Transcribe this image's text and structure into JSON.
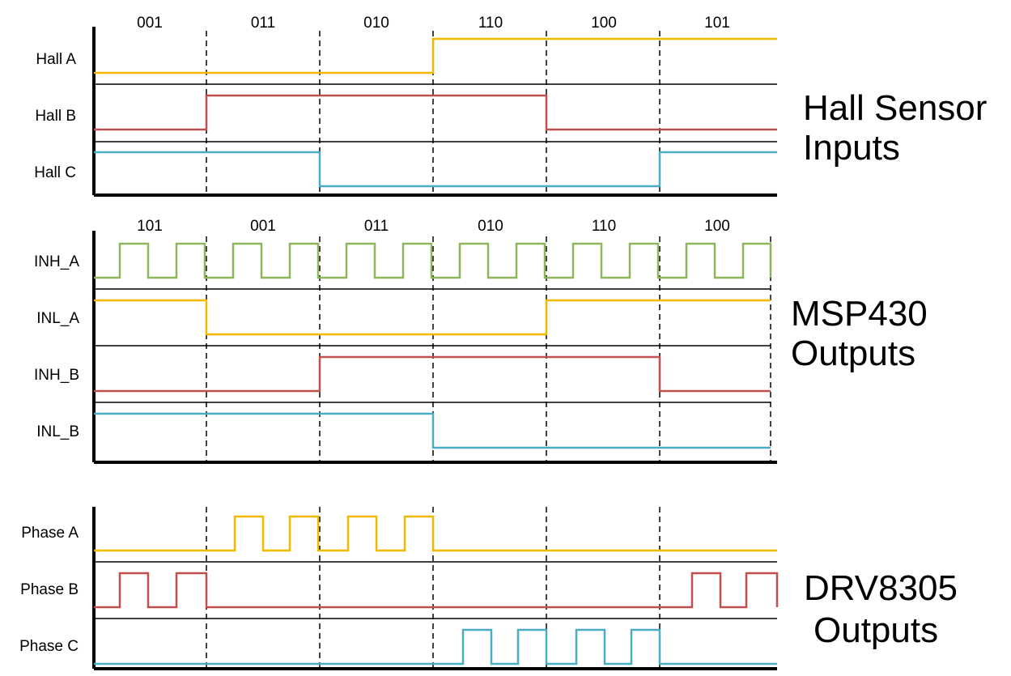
{
  "colors": {
    "yellow": "#F5B800",
    "red": "#C0504D",
    "blue": "#4BACC6",
    "green": "#8DB55A",
    "black": "#000000"
  },
  "hall_group": {
    "title_line1": "Hall Sensor",
    "title_line2": "Inputs",
    "codes": [
      "001",
      "011",
      "010",
      "110",
      "100",
      "101"
    ],
    "signals": [
      {
        "label": "Hall A",
        "color": "yellow",
        "levels": [
          0,
          0,
          0,
          1,
          1,
          1
        ]
      },
      {
        "label": "Hall B",
        "color": "red",
        "levels": [
          0,
          1,
          1,
          1,
          0,
          0
        ]
      },
      {
        "label": "Hall C",
        "color": "blue",
        "levels": [
          1,
          1,
          0,
          0,
          0,
          1
        ]
      }
    ]
  },
  "msp_group": {
    "title_line1": "MSP430",
    "title_line2": "Outputs",
    "codes": [
      "101",
      "001",
      "011",
      "010",
      "110",
      "100"
    ],
    "signals": [
      {
        "label": "INH_A",
        "color": "green",
        "pwm": [
          1,
          1,
          1,
          1,
          1,
          1
        ]
      },
      {
        "label": "INL_A",
        "color": "yellow",
        "levels": [
          1,
          0,
          0,
          0,
          1,
          1
        ]
      },
      {
        "label": "INH_B",
        "color": "red",
        "levels": [
          0,
          0,
          1,
          1,
          1,
          0
        ]
      },
      {
        "label": "INL_B",
        "color": "blue",
        "levels": [
          1,
          1,
          1,
          0,
          0,
          0
        ]
      }
    ]
  },
  "drv_group": {
    "title_line1": "DRV8305",
    "title_line2": "Outputs",
    "signals": [
      {
        "label": "Phase A",
        "color": "yellow",
        "pwm": [
          0,
          1,
          1,
          0,
          0,
          0
        ]
      },
      {
        "label": "Phase B",
        "color": "red",
        "pwm": [
          1,
          0,
          0,
          0,
          0,
          1
        ]
      },
      {
        "label": "Phase C",
        "color": "blue",
        "pwm": [
          0,
          0,
          0,
          1,
          1,
          0
        ]
      }
    ]
  }
}
